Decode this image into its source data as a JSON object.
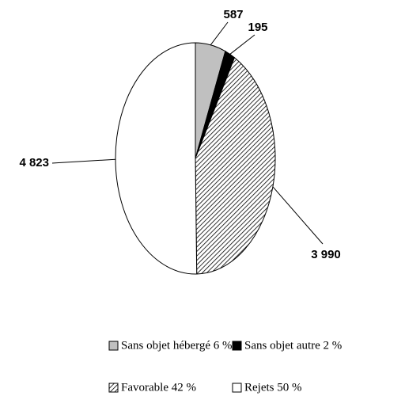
{
  "chart_data": {
    "type": "pie",
    "categories": [
      "Sans objet hébergé 6  %",
      "Sans objet autre 2  %",
      "Favorable 42  %",
      "Rejets 50  %"
    ],
    "values": [
      587,
      195,
      3990,
      4823
    ],
    "value_labels": [
      "587",
      "195",
      "3 990",
      "4 823"
    ],
    "colors": [
      "#c0c0c0",
      "#000000",
      "hatch",
      "#ffffff"
    ],
    "legend": "bottom"
  }
}
